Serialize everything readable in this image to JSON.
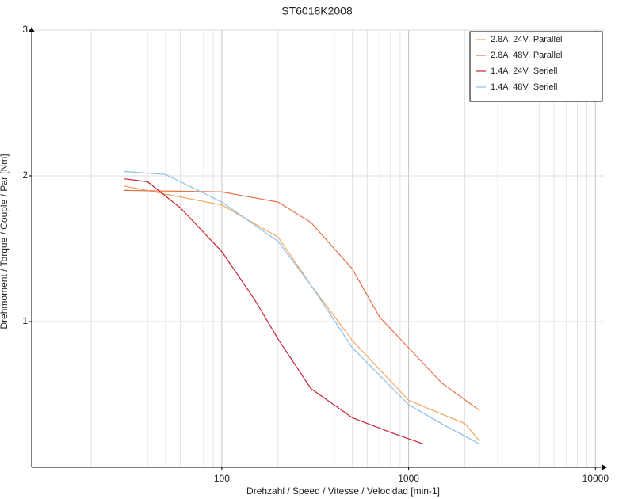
{
  "chart_data": {
    "type": "line",
    "title": "ST6018K2008",
    "x_label": "Drehzahl / Speed / Vitesse / Velocidad [min-1]",
    "y_label": "Drehmoment / Torque / Couple / Par [Nm]",
    "x_log": true,
    "xlim": [
      9.6,
      11100
    ],
    "xticks": [
      100,
      1000,
      10000
    ],
    "xminorticks": [
      20,
      30,
      40,
      50,
      60,
      70,
      80,
      90,
      200,
      300,
      400,
      500,
      600,
      700,
      800,
      900,
      2000,
      3000,
      4000,
      5000,
      6000,
      7000,
      8000,
      9000
    ],
    "ylim": [
      0,
      3
    ],
    "yticks": [
      1,
      2,
      3
    ],
    "grid": true,
    "legend": "top-right",
    "series": [
      {
        "name": "2.8A  24V  Parallel",
        "color": "#f5a561",
        "x": [
          30,
          100,
          200,
          300,
          500,
          1000,
          2000,
          2400
        ],
        "values": [
          1.93,
          1.8,
          1.58,
          1.25,
          0.87,
          0.46,
          0.3,
          0.18
        ]
      },
      {
        "name": "2.8A  48V  Parallel",
        "color": "#e8734a",
        "x": [
          30,
          100,
          200,
          300,
          500,
          700,
          1000,
          1500,
          2400
        ],
        "values": [
          1.9,
          1.89,
          1.82,
          1.68,
          1.36,
          1.03,
          0.82,
          0.58,
          0.39
        ]
      },
      {
        "name": "1.4A  24V  Seriell",
        "color": "#cc2233",
        "x": [
          30,
          40,
          60,
          100,
          150,
          200,
          300,
          500,
          800,
          1200
        ],
        "values": [
          1.98,
          1.96,
          1.78,
          1.48,
          1.15,
          0.88,
          0.54,
          0.34,
          0.24,
          0.16
        ]
      },
      {
        "name": "1.4A  48V  Seriell",
        "color": "#8cbfe8",
        "x": [
          30,
          50,
          100,
          200,
          300,
          500,
          1000,
          1500,
          2400
        ],
        "values": [
          2.03,
          2.01,
          1.82,
          1.55,
          1.25,
          0.82,
          0.43,
          0.3,
          0.16
        ]
      }
    ]
  }
}
